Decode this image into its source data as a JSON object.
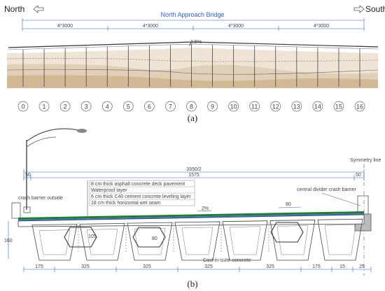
{
  "panel_a": {
    "north_label": "North",
    "south_label": "South",
    "bridge_title": "North Approach Bridge",
    "spans": [
      "4*3000",
      "4*3000",
      "4*3000",
      "4*3000"
    ],
    "slope_label": "2.5%",
    "piers": [
      "0",
      "1",
      "2",
      "3",
      "4",
      "5",
      "6",
      "7",
      "8",
      "9",
      "10",
      "11",
      "12",
      "13",
      "14",
      "15",
      "16"
    ],
    "caption": "(a)"
  },
  "panel_b": {
    "symmetry_label": "Symmetry line",
    "total_width": "3350/2",
    "partial_width": "1575",
    "edge_dim_left": "50",
    "edge_dim_right": "50",
    "layers": [
      "8 cm thick asphalt concrete deck pavement",
      "Waterproof layer",
      "6 cm thick C40 cement concrete leveling layer",
      "18 cm thick horizontal wet seam"
    ],
    "barrier_outside": "crash barrier outside",
    "barrier_center": "central divider crash barrier",
    "slope_label": "2%",
    "joint_width": "80",
    "joint_detail_w": "105",
    "joint_detail_h": "80",
    "deck_depth": "160",
    "wet_seam_label": "Cast-in-suite concrete",
    "bottom_dims": [
      "175",
      "325",
      "325",
      "325",
      "325",
      "175",
      "15",
      "25"
    ],
    "caption": "(b)"
  }
}
